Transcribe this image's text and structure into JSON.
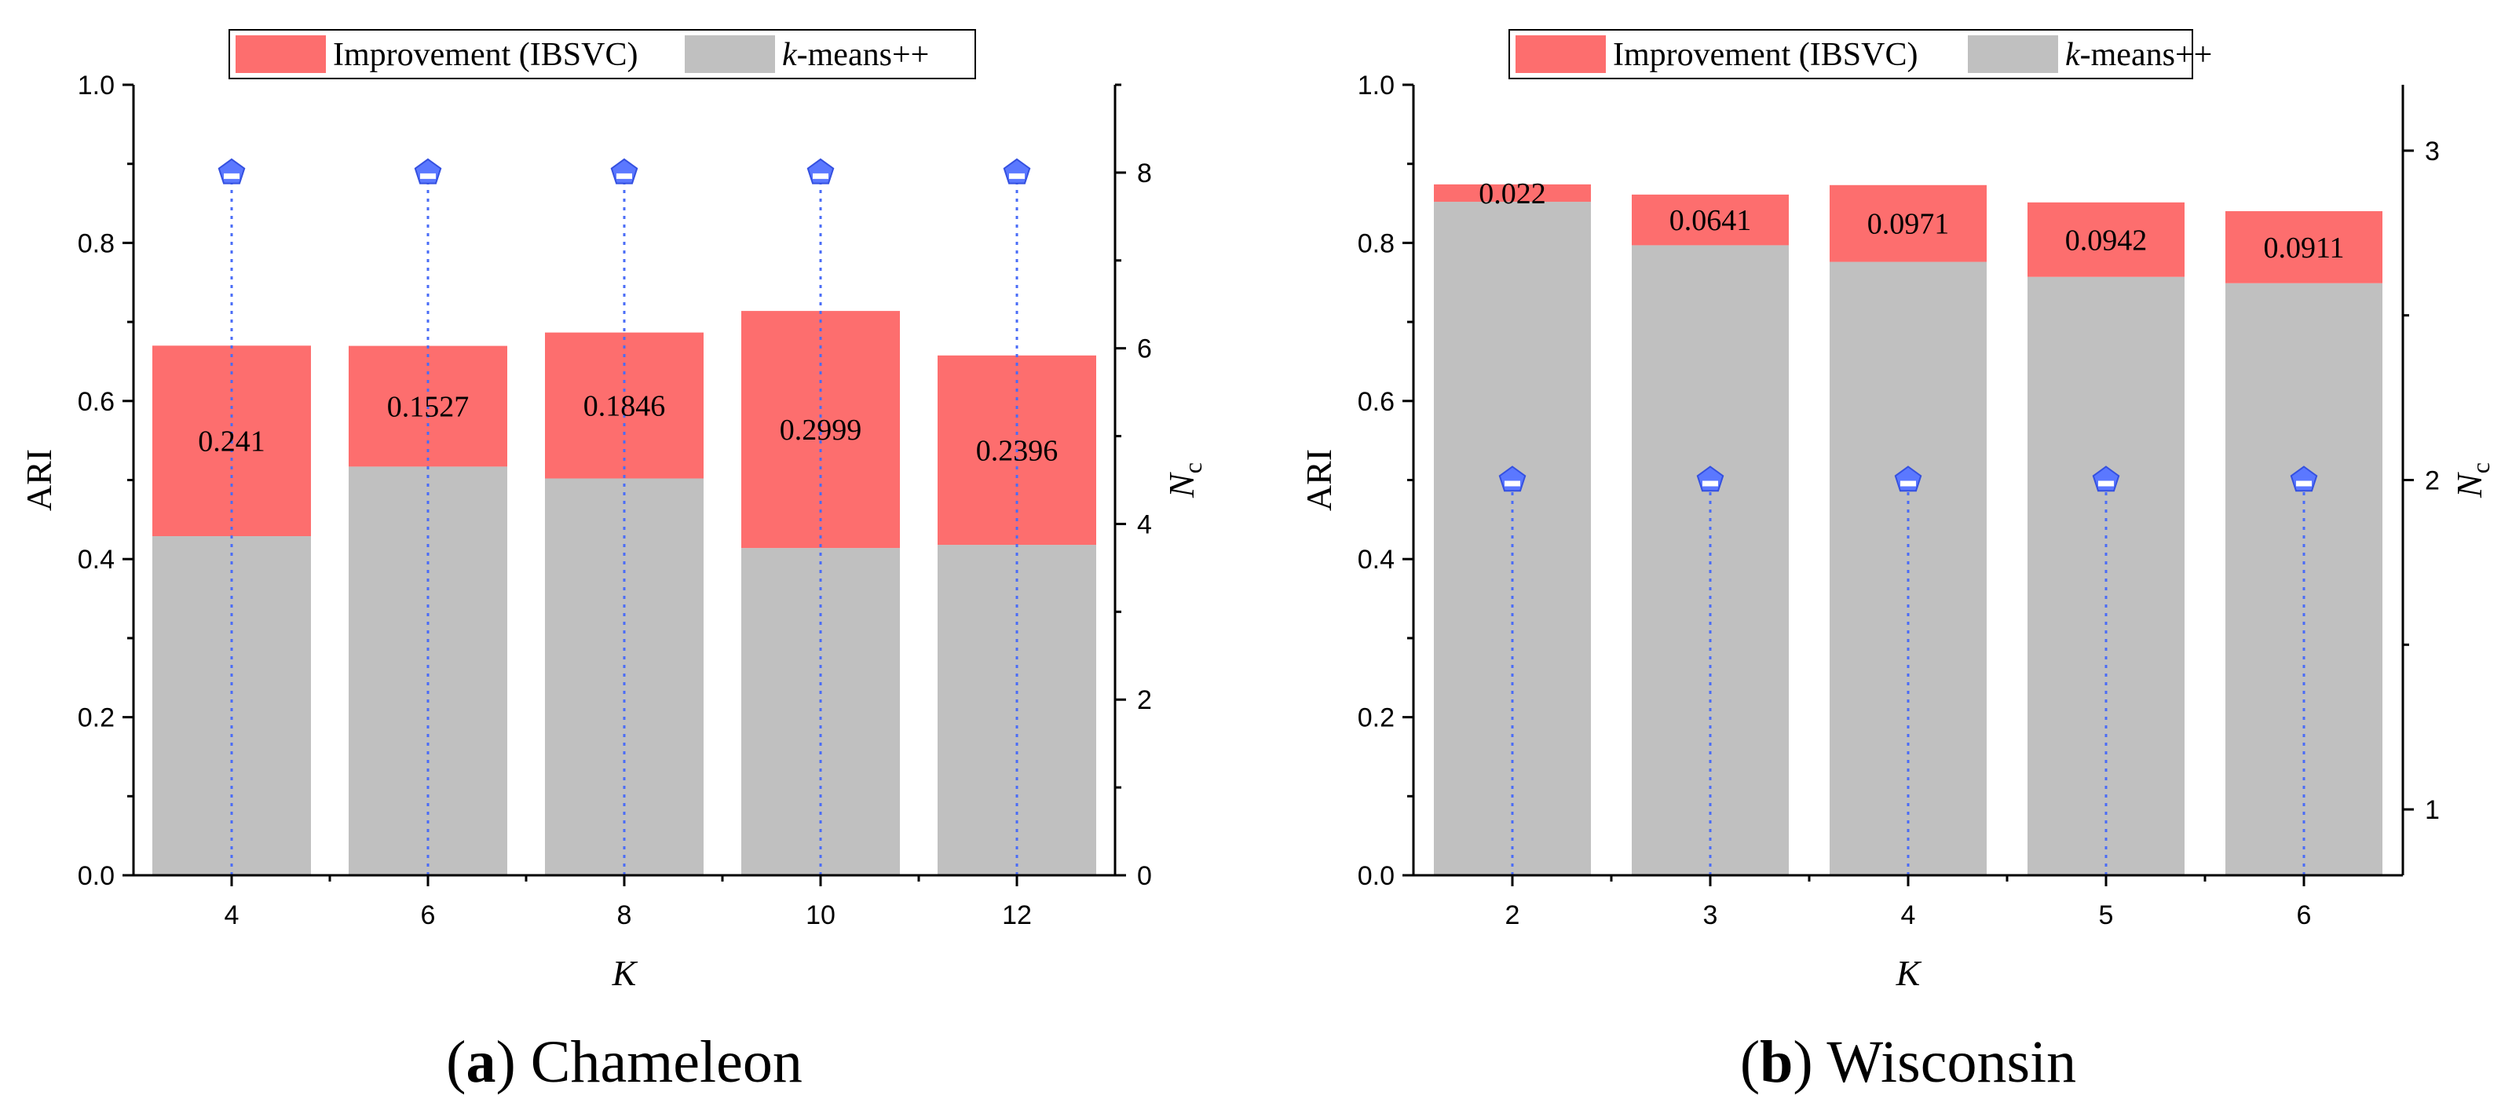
{
  "colors": {
    "improvement": "#fd6e6e",
    "base": "#c0c0c0",
    "marker": "#5b78ff",
    "stem": "#4a6cf7"
  },
  "chart_data": [
    {
      "type": "bar",
      "stacked": true,
      "caption_letter": "a",
      "caption_text": "Chameleon",
      "xlabel": "K",
      "ylabel": "ARI",
      "y2label_main": "N",
      "y2label_sub": "c",
      "categories": [
        "4",
        "6",
        "8",
        "10",
        "12"
      ],
      "ylim": [
        0,
        1
      ],
      "yticks": [
        "0.0",
        "0.2",
        "0.4",
        "0.6",
        "0.8",
        "1.0"
      ],
      "y2lim": [
        0,
        9
      ],
      "y2ticks": [
        "0",
        "2",
        "4",
        "6",
        "8"
      ],
      "legend": [
        "Improvement (IBSVC)",
        "k-means++"
      ],
      "legend_position": "top-center",
      "series": [
        {
          "name": "k-means++",
          "values": [
            0.429,
            0.517,
            0.502,
            0.414,
            0.418
          ]
        },
        {
          "name": "Improvement (IBSVC)",
          "values": [
            0.241,
            0.1527,
            0.1846,
            0.2999,
            0.2396
          ],
          "labels": [
            "0.241",
            "0.1527",
            "0.1846",
            "0.2999",
            "0.2396"
          ]
        }
      ],
      "nc_values": [
        8,
        8,
        8,
        8,
        8
      ]
    },
    {
      "type": "bar",
      "stacked": true,
      "caption_letter": "b",
      "caption_text": "Wisconsin",
      "xlabel": "K",
      "ylabel": "ARI",
      "y2label_main": "N",
      "y2label_sub": "c",
      "categories": [
        "2",
        "3",
        "4",
        "5",
        "6"
      ],
      "ylim": [
        0,
        1
      ],
      "yticks": [
        "0.0",
        "0.2",
        "0.4",
        "0.6",
        "0.8",
        "1.0"
      ],
      "y2lim": [
        0.8,
        3.2
      ],
      "y2ticks": [
        "1",
        "2",
        "3"
      ],
      "legend": [
        "Improvement (IBSVC)",
        "k-means++"
      ],
      "legend_position": "top-center",
      "series": [
        {
          "name": "k-means++",
          "values": [
            0.852,
            0.797,
            0.776,
            0.757,
            0.749
          ]
        },
        {
          "name": "Improvement (IBSVC)",
          "values": [
            0.022,
            0.0641,
            0.0971,
            0.0942,
            0.0911
          ],
          "labels": [
            "0.022",
            "0.0641",
            "0.0971",
            "0.0942",
            "0.0911"
          ]
        }
      ],
      "nc_values": [
        2,
        2,
        2,
        2,
        2
      ]
    }
  ]
}
